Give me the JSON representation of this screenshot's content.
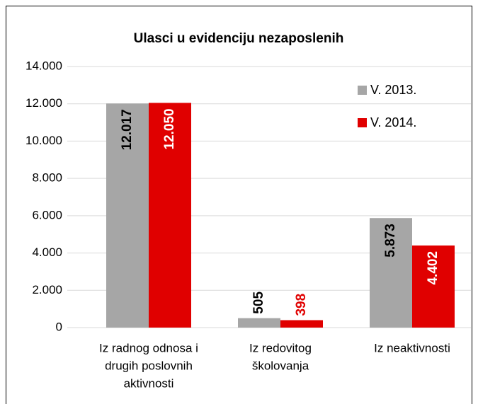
{
  "chart_data": {
    "type": "bar",
    "title": "Ulasci u evidenciju nezaposlenih",
    "categories": [
      [
        "Iz radnog odnosa i",
        "drugih poslovnih",
        "aktivnosti"
      ],
      [
        "Iz redovitog",
        "školovanja"
      ],
      [
        "Iz neaktivnosti"
      ]
    ],
    "series": [
      {
        "name": "V. 2013.",
        "color": "#a6a6a6",
        "values": [
          12017,
          505,
          5873
        ],
        "value_labels": [
          "12.017",
          "505",
          "5.873"
        ]
      },
      {
        "name": "V. 2014.",
        "color": "#e00000",
        "values": [
          12050,
          398,
          4402
        ],
        "value_labels": [
          "12.050",
          "398",
          "4.402"
        ]
      }
    ],
    "ylim": [
      0,
      14000
    ],
    "yticks": [
      0,
      {
        "value": 2000,
        "label": "2.000"
      },
      {
        "value": 4000,
        "label": "4.000"
      },
      {
        "value": 6000,
        "label": "6.000"
      },
      {
        "value": 8000,
        "label": "8.000"
      },
      {
        "value": 10000,
        "label": "10.000"
      },
      {
        "value": 12000,
        "label": "12.000"
      },
      {
        "value": 14000,
        "label": "14.000"
      }
    ],
    "grid": true,
    "legend": "upper right"
  }
}
